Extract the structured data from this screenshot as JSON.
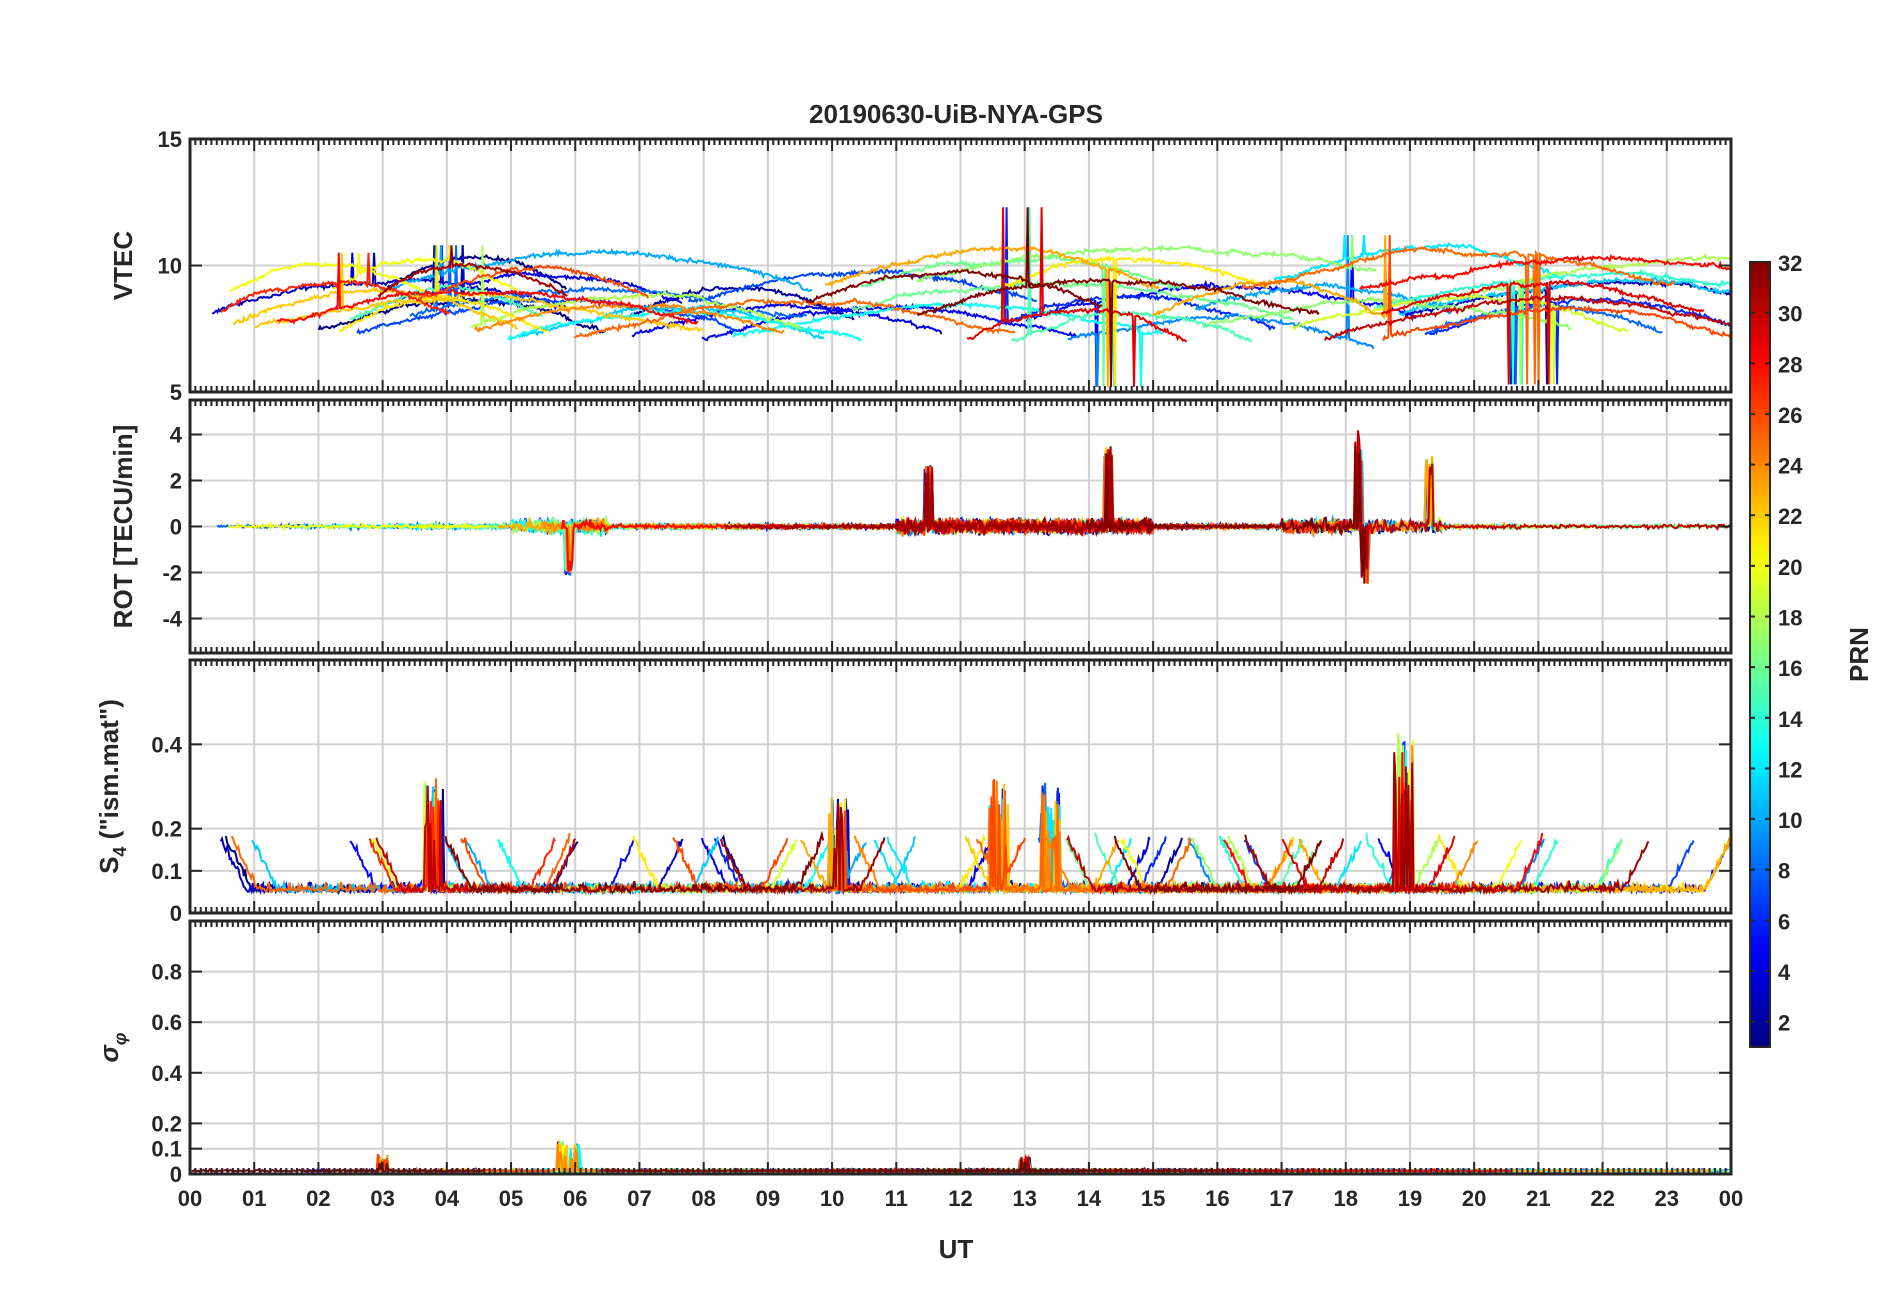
{
  "figure": {
    "title": "20190630-UiB-NYA-GPS",
    "xlabel": "UT",
    "x_tick_labels": [
      "00",
      "01",
      "02",
      "03",
      "04",
      "05",
      "06",
      "07",
      "08",
      "09",
      "10",
      "11",
      "12",
      "13",
      "14",
      "15",
      "16",
      "17",
      "18",
      "19",
      "20",
      "21",
      "22",
      "23",
      "00"
    ]
  },
  "colorbar": {
    "label": "PRN",
    "range": [
      1,
      32
    ],
    "tick_labels": [
      "2",
      "4",
      "6",
      "8",
      "10",
      "12",
      "14",
      "16",
      "18",
      "20",
      "22",
      "24",
      "26",
      "28",
      "30",
      "32"
    ],
    "colormap": "jet",
    "colors": [
      "#00008f",
      "#0000ff",
      "#0080ff",
      "#00ffff",
      "#80ff80",
      "#ffff00",
      "#ff8000",
      "#ff0000",
      "#800000"
    ]
  },
  "chart_data": [
    {
      "type": "line",
      "panel": "VTEC",
      "ylabel": "VTEC",
      "x_range_hours": [
        0,
        24
      ],
      "ylim": [
        5,
        15
      ],
      "y_tick_labels": [
        "5",
        "10",
        "15"
      ],
      "grid": true,
      "series_description": "one line per GPS satellite PRN 1-32, colored by PRN",
      "features": [
        {
          "x": 2.6,
          "y": 10.5
        },
        {
          "x": 4.2,
          "y": 10.8
        },
        {
          "x": 13.0,
          "y": 12.3
        },
        {
          "x": 18.3,
          "y": 11.2
        },
        {
          "x": 14.5,
          "y": 5.2
        },
        {
          "x": 20.9,
          "y": 5.3
        }
      ],
      "typical_range": [
        6,
        10
      ]
    },
    {
      "type": "line",
      "panel": "ROT",
      "ylabel": "ROT [TECU/min]",
      "x_range_hours": [
        0,
        24
      ],
      "ylim": [
        -5.5,
        5.5
      ],
      "y_tick_labels": [
        "-4",
        "-2",
        "0",
        "2",
        "4"
      ],
      "grid": true,
      "features": [
        {
          "x": 14.3,
          "y": 3.5
        },
        {
          "x": 18.2,
          "y": 4.2
        },
        {
          "x": 18.3,
          "y": -2.6
        },
        {
          "x": 19.3,
          "y": 3.2
        },
        {
          "x": 5.9,
          "y": -2.1
        },
        {
          "x": 11.5,
          "y": 2.7
        }
      ]
    },
    {
      "type": "line",
      "panel": "S4",
      "ylabel": "S4 (\"ism.mat\")",
      "x_range_hours": [
        0,
        24
      ],
      "ylim": [
        0,
        0.6
      ],
      "y_tick_labels": [
        "0",
        "0.1",
        "0.2",
        "0.4"
      ],
      "grid": true,
      "features": [
        {
          "x": 18.9,
          "y": 0.43
        },
        {
          "x": 12.6,
          "y": 0.32
        },
        {
          "x": 3.8,
          "y": 0.33
        },
        {
          "x": 13.4,
          "y": 0.31
        },
        {
          "x": 10.1,
          "y": 0.28
        }
      ],
      "typical_range": [
        0.03,
        0.12
      ]
    },
    {
      "type": "line",
      "panel": "sigma_phi",
      "ylabel": "σφ",
      "x_range_hours": [
        0,
        24
      ],
      "ylim": [
        0,
        1
      ],
      "y_tick_labels": [
        "0",
        "0.1",
        "0.2",
        "0.4",
        "0.6",
        "0.8"
      ],
      "grid": true,
      "features": [
        {
          "x": 5.8,
          "y": 0.13
        },
        {
          "x": 6.0,
          "y": 0.12
        },
        {
          "x": 3.0,
          "y": 0.08
        },
        {
          "x": 13.0,
          "y": 0.07
        }
      ],
      "typical_range": [
        0.0,
        0.03
      ]
    }
  ]
}
